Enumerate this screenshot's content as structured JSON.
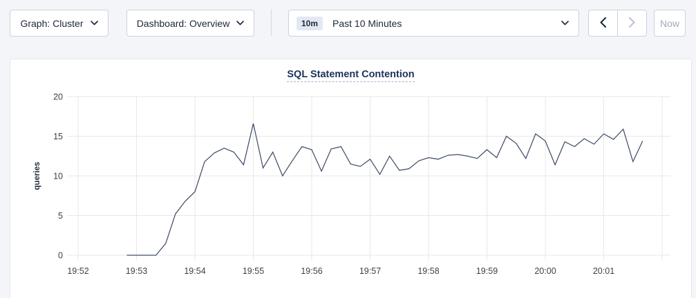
{
  "toolbar": {
    "graph_dropdown": {
      "text": "Graph: Cluster"
    },
    "dashboard_dropdown": {
      "text": "Dashboard: Overview"
    },
    "time_selector": {
      "badge": "10m",
      "label": "Past 10 Minutes"
    },
    "now_label": "Now"
  },
  "colors": {
    "line": "#404e68",
    "grid": "#e7e7e9",
    "title": "#1c3259",
    "accent_badge_bg": "#e3e9f3",
    "enabled_chevron": "#1b2940",
    "disabled_chevron": "#b9c2cf"
  },
  "chart_data": {
    "type": "line",
    "title": "SQL Statement Contention",
    "xlabel": "",
    "ylabel": "queries",
    "ylim": [
      0,
      20
    ],
    "yticks": [
      0,
      5,
      10,
      15,
      20
    ],
    "xticks": [
      "19:52",
      "19:53",
      "19:54",
      "19:55",
      "19:56",
      "19:57",
      "19:58",
      "19:59",
      "20:00",
      "20:01"
    ],
    "x_minutes_per_tick": 1,
    "grid": true,
    "legend": "none",
    "series": [
      {
        "name": "SQL Statement Contention",
        "unit": "queries",
        "start_time": "19:52:50",
        "step_seconds": 10,
        "t0_seconds_from_first_tick": 50,
        "values": [
          0,
          0,
          0,
          0,
          1.5,
          5.2,
          6.8,
          8.0,
          11.8,
          12.9,
          13.5,
          13.0,
          11.4,
          16.6,
          11.0,
          13.0,
          10.0,
          11.9,
          13.7,
          13.3,
          10.6,
          13.4,
          13.7,
          11.5,
          11.2,
          12.1,
          10.2,
          12.5,
          10.7,
          10.9,
          11.9,
          12.3,
          12.1,
          12.6,
          12.7,
          12.5,
          12.2,
          13.3,
          12.3,
          15.0,
          14.1,
          12.2,
          15.3,
          14.4,
          11.4,
          14.3,
          13.7,
          14.7,
          14.0,
          15.3,
          14.6,
          15.9,
          11.8,
          14.4
        ]
      }
    ]
  }
}
